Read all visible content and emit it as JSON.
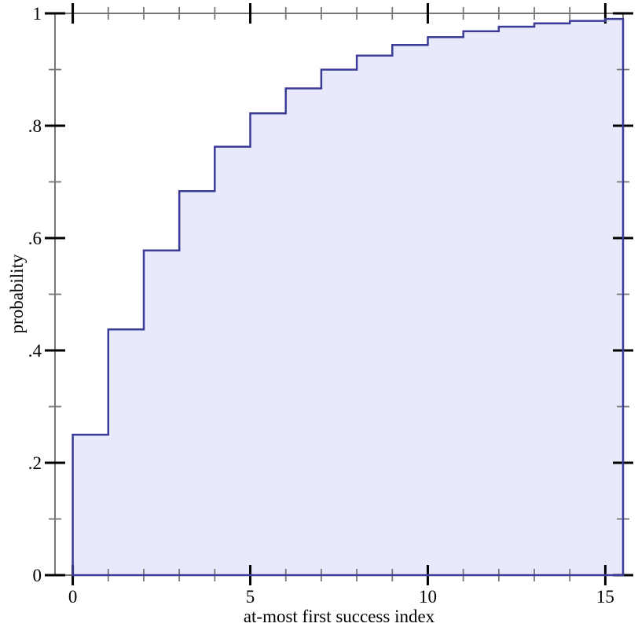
{
  "figure": {
    "background": "#ffffff"
  },
  "chart_data": {
    "type": "area",
    "style": "step-cdf",
    "title": "",
    "xlabel": "at-most first success index",
    "ylabel": "probability",
    "x": [
      0,
      1,
      2,
      3,
      4,
      5,
      6,
      7,
      8,
      9,
      10,
      11,
      12,
      13,
      14,
      15
    ],
    "values": [
      0.25,
      0.4375,
      0.5781,
      0.6836,
      0.7627,
      0.822,
      0.8665,
      0.8999,
      0.9249,
      0.9437,
      0.9578,
      0.9683,
      0.9762,
      0.9822,
      0.9866,
      0.99
    ],
    "xlim": [
      -0.5,
      15.5
    ],
    "ylim": [
      0,
      1
    ],
    "x_ticks": {
      "major": [
        0,
        5,
        10,
        15
      ],
      "major_labels": [
        "0",
        "5",
        "10",
        "15"
      ],
      "minor": [
        1,
        2,
        3,
        4,
        6,
        7,
        8,
        9,
        11,
        12,
        13,
        14
      ]
    },
    "y_ticks": {
      "major": [
        0,
        0.2,
        0.4,
        0.6,
        0.8,
        1
      ],
      "major_labels": [
        "0",
        ".2",
        ".4",
        ".6",
        ".8",
        "1"
      ],
      "minor": [
        0.1,
        0.3,
        0.5,
        0.7,
        0.9
      ]
    },
    "grid": false,
    "legend": "none",
    "colors": {
      "line": "#3b3b98",
      "fill": "#e8e9fb",
      "axis": "#777777",
      "major_tick": "#000000",
      "minor_tick": "#777777",
      "text": "#000000"
    }
  }
}
